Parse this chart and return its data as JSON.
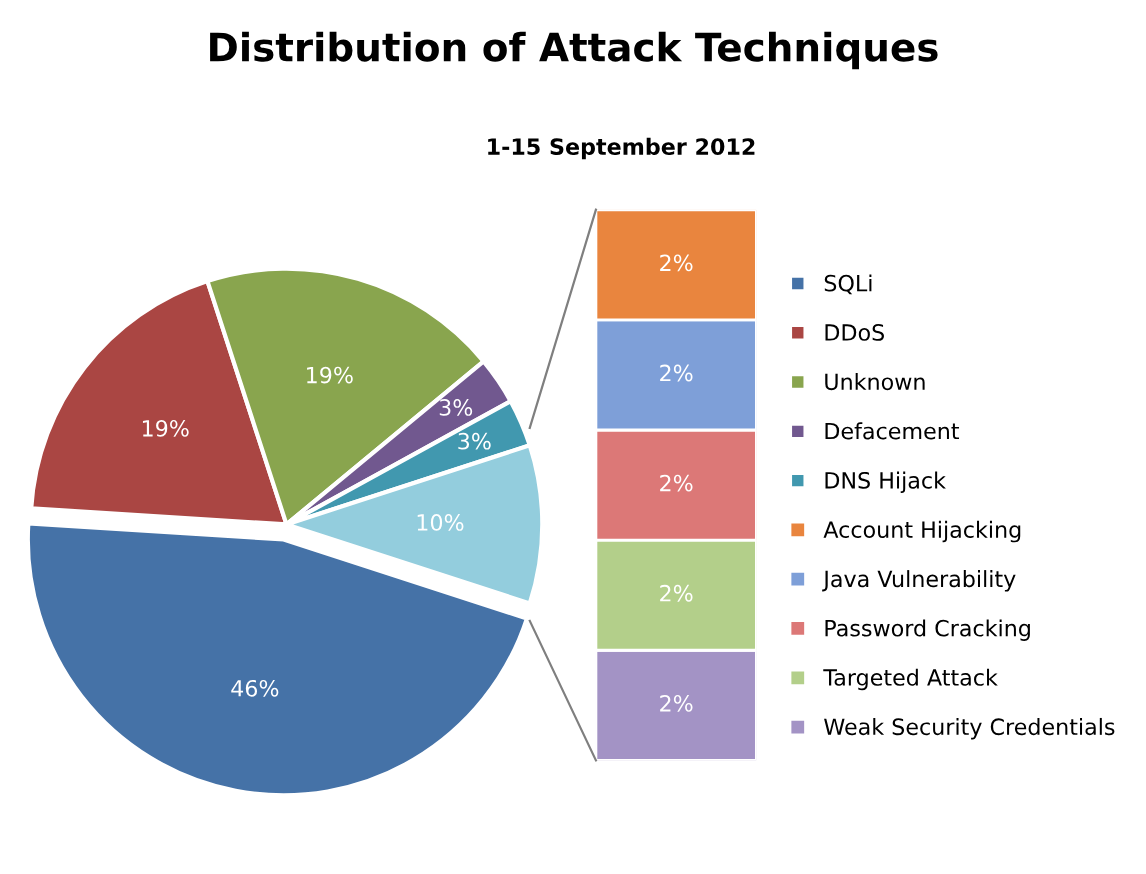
{
  "chart_data": [
    {
      "type": "pie",
      "title": "Distribution of Attack Techniques",
      "categories": [
        "SQLi",
        "DDoS",
        "Unknown",
        "Defacement",
        "DNS Hijack",
        null
      ],
      "values": [
        46,
        19,
        19,
        3,
        3,
        10
      ],
      "value_labels": [
        "46%",
        "19%",
        "19%",
        "3%",
        "3%",
        "10%"
      ],
      "colors": [
        "#4572a7",
        "#aa4643",
        "#89a54e",
        "#71588f",
        "#4198af",
        "#93cddd"
      ],
      "legend": "right"
    },
    {
      "type": "bar",
      "subtitle": "1-15 September 2012",
      "stacked": true,
      "categories": [
        null
      ],
      "tick_labels": false,
      "legend": "right",
      "series": [
        {
          "name": "Weak Security Credentials",
          "color": "#a393c5",
          "values": [
            2
          ],
          "value_labels": [
            "2%"
          ]
        },
        {
          "name": "Targeted Attack",
          "color": "#b3cf8a",
          "values": [
            2
          ],
          "value_labels": [
            "2%"
          ]
        },
        {
          "name": "Password Cracking",
          "color": "#dc7877",
          "values": [
            2
          ],
          "value_labels": [
            "2%"
          ]
        },
        {
          "name": "Java Vulnerability",
          "color": "#7e9fd8",
          "values": [
            2
          ],
          "value_labels": [
            "2%"
          ]
        },
        {
          "name": "Account Hijacking",
          "color": "#e9853e",
          "values": [
            2
          ],
          "value_labels": [
            "2%"
          ]
        }
      ]
    }
  ]
}
